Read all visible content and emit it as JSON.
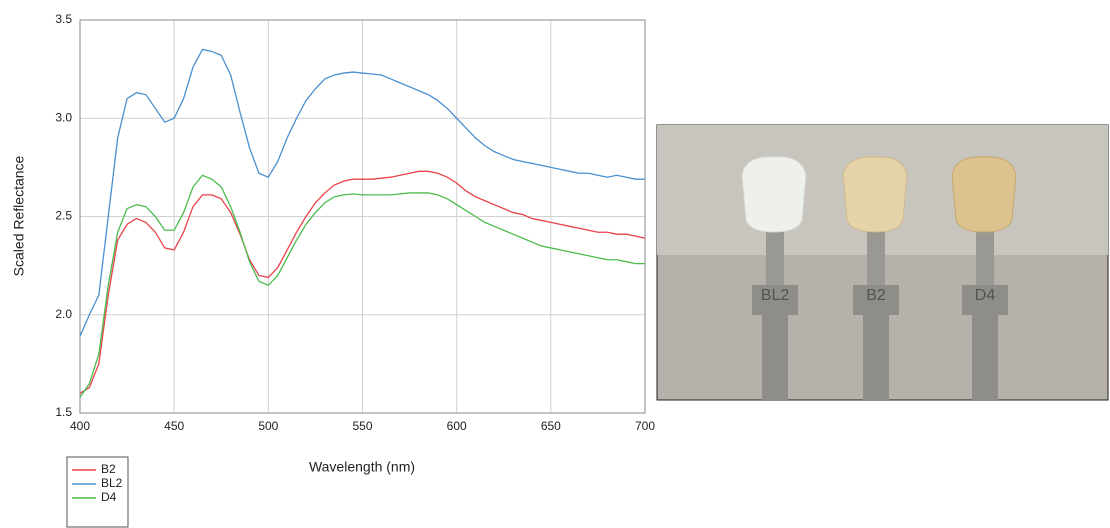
{
  "chart_data": {
    "type": "line",
    "x_label": "Wavelength (nm)",
    "y_label": "Scaled Reflectance",
    "x": [
      400,
      405,
      410,
      415,
      420,
      425,
      430,
      435,
      440,
      445,
      450,
      455,
      460,
      465,
      470,
      475,
      480,
      485,
      490,
      495,
      500,
      505,
      510,
      515,
      520,
      525,
      530,
      535,
      540,
      545,
      550,
      555,
      560,
      565,
      570,
      575,
      580,
      585,
      590,
      595,
      600,
      605,
      610,
      615,
      620,
      625,
      630,
      635,
      640,
      645,
      650,
      655,
      660,
      665,
      670,
      675,
      680,
      685,
      690,
      695,
      700
    ],
    "series": [
      {
        "name": "B2",
        "color": "#e8424a",
        "values": [
          1.6,
          1.63,
          1.75,
          2.1,
          2.38,
          2.46,
          2.49,
          2.47,
          2.42,
          2.34,
          2.33,
          2.42,
          2.55,
          2.61,
          2.61,
          2.59,
          2.52,
          2.41,
          2.28,
          2.2,
          2.19,
          2.24,
          2.33,
          2.42,
          2.5,
          2.57,
          2.62,
          2.66,
          2.68,
          2.69,
          2.69,
          2.69,
          2.695,
          2.7,
          2.71,
          2.72,
          2.73,
          2.73,
          2.72,
          2.7,
          2.67,
          2.63,
          2.6,
          2.58,
          2.56,
          2.54,
          2.52,
          2.51,
          2.49,
          2.48,
          2.47,
          2.46,
          2.45,
          2.44,
          2.43,
          2.42,
          2.42,
          2.41,
          2.41,
          2.4,
          2.39
        ]
      },
      {
        "name": "BL2",
        "color": "#4a8fd0",
        "values": [
          1.89,
          2.0,
          2.1,
          2.5,
          2.9,
          3.1,
          3.13,
          3.12,
          3.05,
          2.98,
          3.0,
          3.1,
          3.26,
          3.35,
          3.34,
          3.32,
          3.22,
          3.03,
          2.85,
          2.72,
          2.7,
          2.78,
          2.9,
          3.0,
          3.09,
          3.15,
          3.2,
          3.22,
          3.23,
          3.235,
          3.23,
          3.225,
          3.22,
          3.2,
          3.18,
          3.16,
          3.14,
          3.12,
          3.09,
          3.05,
          3.0,
          2.95,
          2.9,
          2.86,
          2.83,
          2.81,
          2.79,
          2.78,
          2.77,
          2.76,
          2.75,
          2.74,
          2.73,
          2.72,
          2.72,
          2.71,
          2.7,
          2.71,
          2.7,
          2.69,
          2.69
        ]
      },
      {
        "name": "D4",
        "color": "#4cbc4c",
        "values": [
          1.58,
          1.65,
          1.8,
          2.15,
          2.42,
          2.54,
          2.56,
          2.55,
          2.5,
          2.43,
          2.43,
          2.52,
          2.65,
          2.71,
          2.69,
          2.65,
          2.55,
          2.42,
          2.27,
          2.17,
          2.15,
          2.2,
          2.29,
          2.38,
          2.46,
          2.52,
          2.57,
          2.6,
          2.61,
          2.615,
          2.61,
          2.61,
          2.61,
          2.61,
          2.615,
          2.62,
          2.62,
          2.62,
          2.61,
          2.59,
          2.56,
          2.53,
          2.5,
          2.47,
          2.45,
          2.43,
          2.41,
          2.39,
          2.37,
          2.35,
          2.34,
          2.33,
          2.32,
          2.31,
          2.3,
          2.29,
          2.28,
          2.28,
          2.27,
          2.26,
          2.26
        ]
      }
    ],
    "xlim": [
      400,
      700
    ],
    "xticks": [
      400,
      450,
      500,
      550,
      600,
      650,
      700
    ],
    "ylim": [
      1.5,
      3.5
    ],
    "yticks": [
      1.5,
      {
        "value": 2,
        "label": "2.0"
      },
      2.5,
      {
        "value": 3,
        "label": "3.0"
      },
      3.5
    ],
    "grid": true,
    "legend": "bottom-left"
  },
  "photo": {
    "tab_labels": [
      "BL2",
      "B2",
      "D4"
    ]
  }
}
